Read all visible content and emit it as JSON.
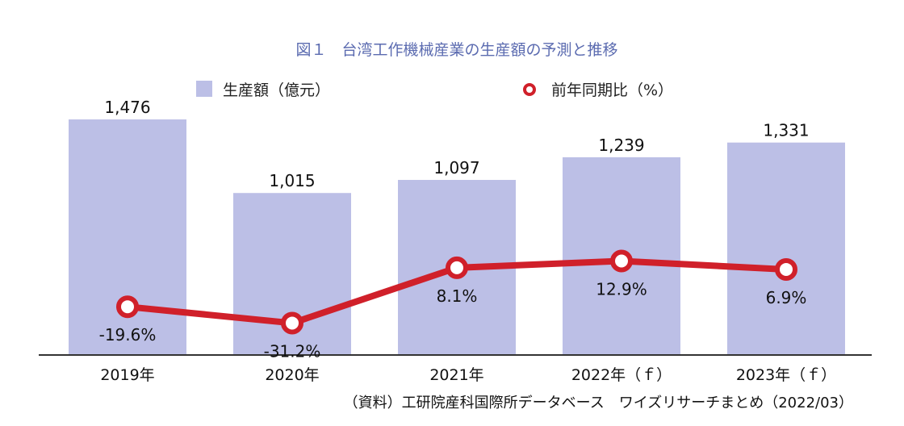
{
  "colors": {
    "bar": "#bcbfe6",
    "line": "#d0202a",
    "title": "#5b6bb0",
    "axis": "#333333"
  },
  "chart_data": {
    "type": "bar+line",
    "title": "図１　台湾工作機械産業の生産額の予測と推移",
    "categories": [
      "2019年",
      "2020年",
      "2021年",
      "2022年（ｆ）",
      "2023年（ｆ）"
    ],
    "series": [
      {
        "name": "生産額（億元）",
        "kind": "bar",
        "axis": "left",
        "values": [
          1476,
          1015,
          1097,
          1239,
          1331
        ],
        "labels": [
          "1,476",
          "1,015",
          "1,097",
          "1,239",
          "1,331"
        ]
      },
      {
        "name": "前年同期比（%）",
        "kind": "line",
        "axis": "right",
        "values": [
          -19.6,
          -31.2,
          8.1,
          12.9,
          6.9
        ],
        "labels": [
          "-19.6%",
          "-31.2%",
          "8.1%",
          "12.9%",
          "6.9%"
        ]
      }
    ],
    "ylim_left": [
      0,
      1600
    ],
    "ylim_right": [
      -40,
      60
    ],
    "legend": "top",
    "source": "（資料）工研院産科国際所データベース　ワイズリサーチまとめ（2022/03）"
  }
}
